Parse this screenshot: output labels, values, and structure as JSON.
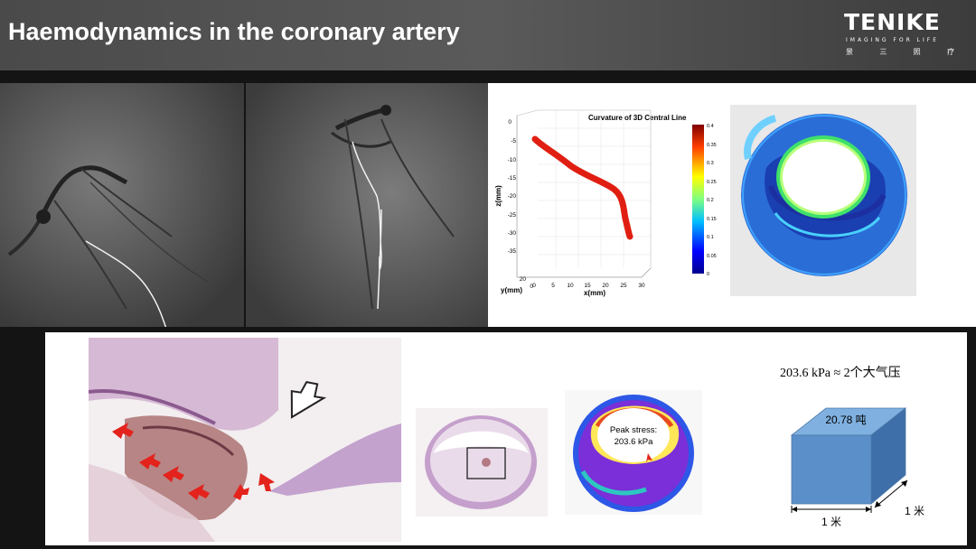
{
  "header": {
    "title": "Haemodynamics in the coronary artery"
  },
  "logo": {
    "main": "TENIKE",
    "tagline": "IMAGING FOR LIFE",
    "chinese": [
      "景",
      "三",
      "照",
      "疗"
    ]
  },
  "curvature_plot": {
    "title": "Curvature of 3D Central Line",
    "xlabel": "x(mm)",
    "ylabel": "y(mm)",
    "zlabel": "z(mm)",
    "z_ticks": [
      "0",
      "-5",
      "-10",
      "-15",
      "-20",
      "-25",
      "-30",
      "-35"
    ],
    "x_ticks": [
      "0",
      "5",
      "10",
      "15",
      "20",
      "25",
      "30"
    ],
    "y_ticks": [
      "20",
      "0"
    ],
    "colorbar_ticks": [
      "0.4",
      "0.35",
      "0.3",
      "0.25",
      "0.2",
      "0.15",
      "0.1",
      "0.05",
      "0"
    ]
  },
  "stress_plot": {
    "label_line1": "Peak stress:",
    "label_line2": "203.6 kPa"
  },
  "pressure_info": {
    "equation": "203.6 kPa ≈ 2个大气压",
    "cube_top_label": "20.78 吨",
    "side_dimension": "1 米",
    "bottom_dimension": "1 米"
  },
  "colors": {
    "header_bg": "#4f4f4f",
    "page_bg": "#141414",
    "cube_front": "#5b8fc9",
    "cube_top": "#7fb0e0",
    "cube_side": "#3f6fa8",
    "arrow_red": "#e3231c"
  }
}
